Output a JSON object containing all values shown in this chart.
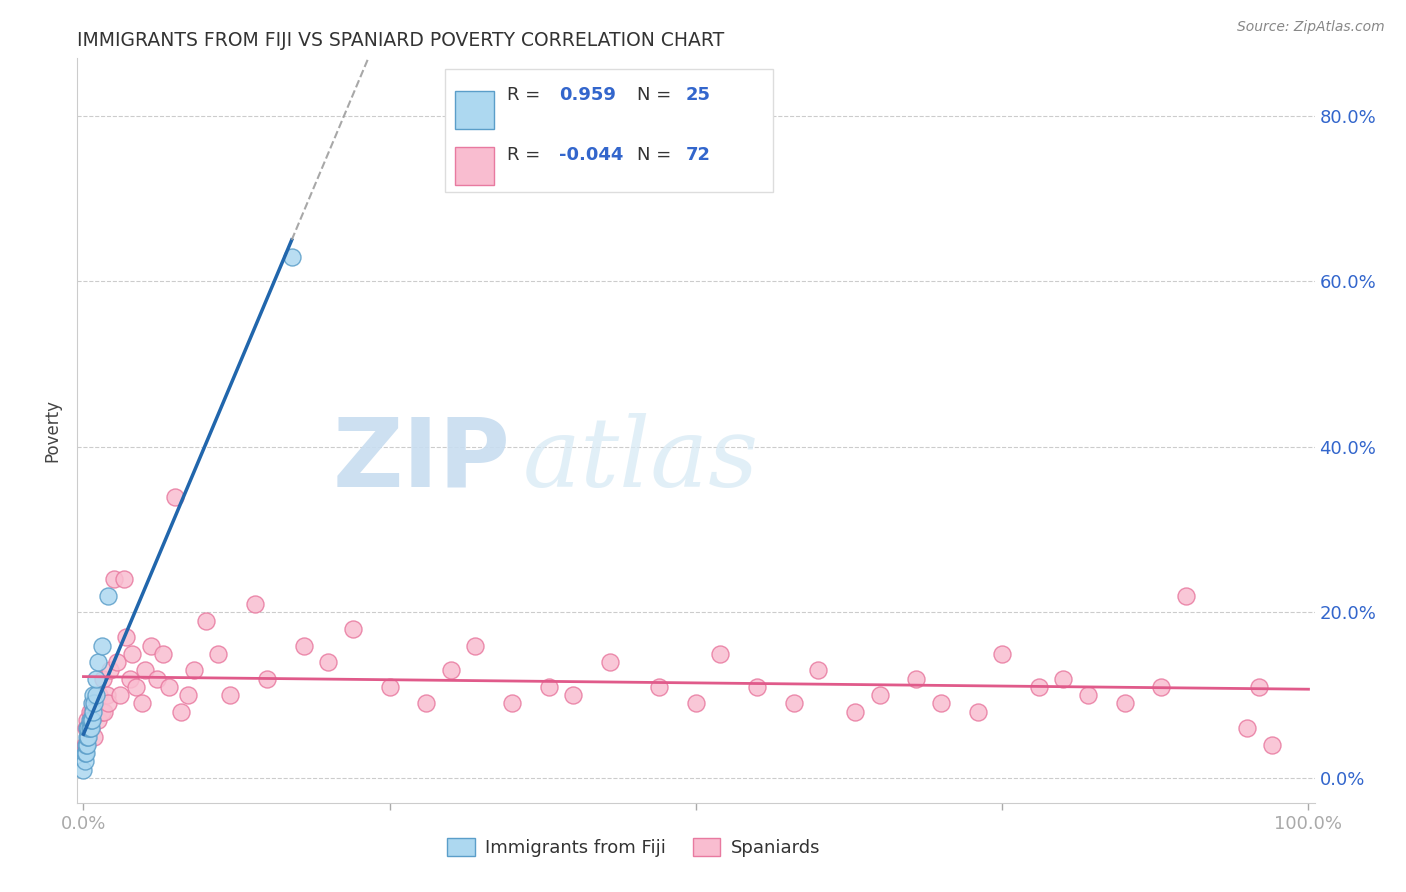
{
  "title": "IMMIGRANTS FROM FIJI VS SPANIARD POVERTY CORRELATION CHART",
  "source": "Source: ZipAtlas.com",
  "ylabel": "Poverty",
  "fiji_R": 0.959,
  "fiji_N": 25,
  "spain_R": -0.044,
  "spain_N": 72,
  "fiji_color": "#add8f0",
  "spain_color": "#f9bdd0",
  "fiji_edge_color": "#5b9ec9",
  "spain_edge_color": "#e87aa0",
  "fiji_line_color": "#2166ac",
  "spain_line_color": "#e05a8a",
  "bg_color": "#ffffff",
  "fiji_x": [
    0.0,
    0.001,
    0.001,
    0.002,
    0.002,
    0.003,
    0.003,
    0.003,
    0.004,
    0.004,
    0.005,
    0.005,
    0.006,
    0.006,
    0.007,
    0.007,
    0.008,
    0.008,
    0.009,
    0.01,
    0.01,
    0.012,
    0.015,
    0.02,
    0.17
  ],
  "fiji_y": [
    0.01,
    0.02,
    0.03,
    0.03,
    0.04,
    0.04,
    0.05,
    0.06,
    0.05,
    0.06,
    0.06,
    0.07,
    0.06,
    0.07,
    0.07,
    0.09,
    0.08,
    0.1,
    0.09,
    0.1,
    0.12,
    0.14,
    0.16,
    0.22,
    0.63
  ],
  "spain_x": [
    0.001,
    0.002,
    0.003,
    0.005,
    0.006,
    0.007,
    0.008,
    0.009,
    0.01,
    0.012,
    0.013,
    0.015,
    0.016,
    0.017,
    0.019,
    0.02,
    0.022,
    0.025,
    0.027,
    0.03,
    0.033,
    0.035,
    0.038,
    0.04,
    0.043,
    0.048,
    0.05,
    0.055,
    0.06,
    0.065,
    0.07,
    0.075,
    0.08,
    0.085,
    0.09,
    0.1,
    0.11,
    0.12,
    0.14,
    0.15,
    0.18,
    0.2,
    0.22,
    0.25,
    0.28,
    0.3,
    0.32,
    0.35,
    0.38,
    0.4,
    0.43,
    0.47,
    0.5,
    0.52,
    0.55,
    0.58,
    0.6,
    0.63,
    0.65,
    0.68,
    0.7,
    0.73,
    0.75,
    0.78,
    0.8,
    0.82,
    0.85,
    0.88,
    0.9,
    0.95,
    0.96,
    0.97
  ],
  "spain_y": [
    0.04,
    0.06,
    0.07,
    0.08,
    0.06,
    0.08,
    0.09,
    0.05,
    0.09,
    0.07,
    0.1,
    0.08,
    0.12,
    0.08,
    0.1,
    0.09,
    0.13,
    0.24,
    0.14,
    0.1,
    0.24,
    0.17,
    0.12,
    0.15,
    0.11,
    0.09,
    0.13,
    0.16,
    0.12,
    0.15,
    0.11,
    0.34,
    0.08,
    0.1,
    0.13,
    0.19,
    0.15,
    0.1,
    0.21,
    0.12,
    0.16,
    0.14,
    0.18,
    0.11,
    0.09,
    0.13,
    0.16,
    0.09,
    0.11,
    0.1,
    0.14,
    0.11,
    0.09,
    0.15,
    0.11,
    0.09,
    0.13,
    0.08,
    0.1,
    0.12,
    0.09,
    0.08,
    0.15,
    0.11,
    0.12,
    0.1,
    0.09,
    0.11,
    0.22,
    0.06,
    0.11,
    0.04
  ],
  "ylim_min": -0.03,
  "ylim_max": 0.87,
  "xlim_min": -0.005,
  "xlim_max": 1.005,
  "yticks": [
    0.0,
    0.2,
    0.4,
    0.6,
    0.8
  ],
  "yticklabels_right": [
    "0.0%",
    "20.0%",
    "40.0%",
    "60.0%",
    "80.0%"
  ],
  "xticks": [
    0.0,
    0.25,
    0.5,
    0.75,
    1.0
  ],
  "xticklabels": [
    "0.0%",
    "",
    "",
    "",
    "100.0%"
  ]
}
